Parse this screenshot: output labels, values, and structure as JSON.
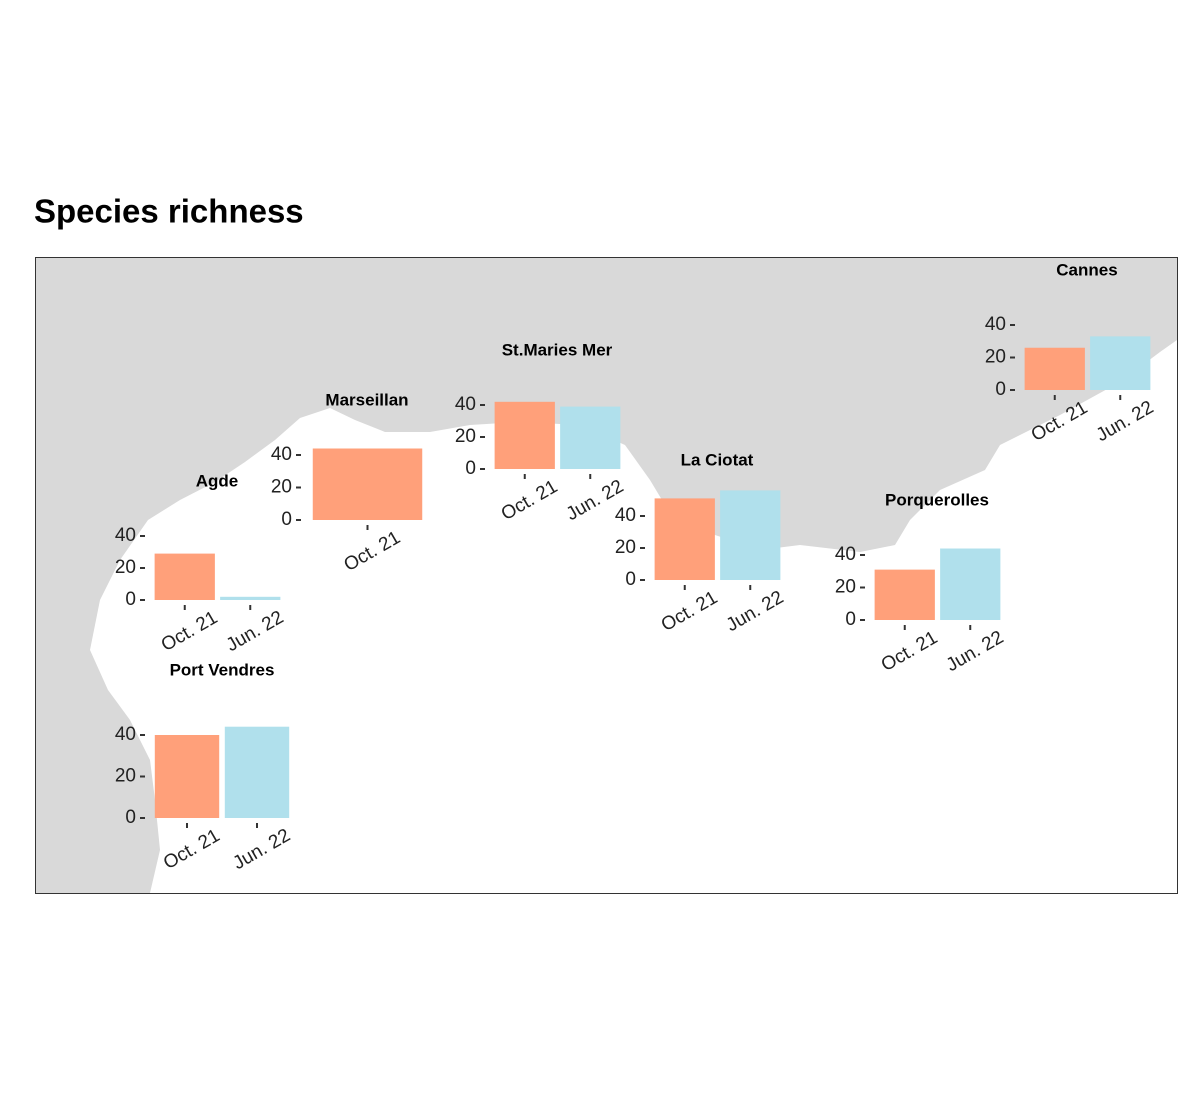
{
  "title": "Species richness",
  "chart_data": [
    {
      "type": "bar",
      "title": "Agde",
      "categories": [
        "Oct. 21",
        "Jun. 22"
      ],
      "values": [
        29,
        2
      ],
      "colors": [
        "#ffa07a",
        "#b0e0ec"
      ],
      "ylim": [
        0,
        40
      ],
      "yticks": [
        0,
        20,
        40
      ]
    },
    {
      "type": "bar",
      "title": "Marseillan",
      "categories": [
        "Oct. 21"
      ],
      "values": [
        44
      ],
      "colors": [
        "#ffa07a"
      ],
      "ylim": [
        0,
        44
      ],
      "yticks": [
        0,
        20,
        40
      ]
    },
    {
      "type": "bar",
      "title": "St.Maries Mer",
      "categories": [
        "Oct. 21",
        "Jun. 22"
      ],
      "values": [
        42,
        39
      ],
      "colors": [
        "#ffa07a",
        "#b0e0ec"
      ],
      "ylim": [
        0,
        42
      ],
      "yticks": [
        0,
        20,
        40
      ]
    },
    {
      "type": "bar",
      "title": "La Ciotat",
      "categories": [
        "Oct. 21",
        "Jun. 22"
      ],
      "values": [
        51,
        56
      ],
      "colors": [
        "#ffa07a",
        "#b0e0ec"
      ],
      "ylim": [
        0,
        56
      ],
      "yticks": [
        0,
        20,
        40
      ]
    },
    {
      "type": "bar",
      "title": "Porquerolles",
      "categories": [
        "Oct. 21",
        "Jun. 22"
      ],
      "values": [
        31,
        44
      ],
      "colors": [
        "#ffa07a",
        "#b0e0ec"
      ],
      "ylim": [
        0,
        44
      ],
      "yticks": [
        0,
        20,
        40
      ]
    },
    {
      "type": "bar",
      "title": "Cannes",
      "categories": [
        "Oct. 21",
        "Jun. 22"
      ],
      "values": [
        26,
        33
      ],
      "colors": [
        "#ffa07a",
        "#b0e0ec"
      ],
      "ylim": [
        0,
        40
      ],
      "yticks": [
        0,
        20,
        40
      ]
    },
    {
      "type": "bar",
      "title": "Port Vendres",
      "categories": [
        "Oct. 21",
        "Jun. 22"
      ],
      "values": [
        40,
        44
      ],
      "colors": [
        "#ffa07a",
        "#b0e0ec"
      ],
      "ylim": [
        0,
        44
      ],
      "yticks": [
        0,
        20,
        40
      ]
    }
  ]
}
